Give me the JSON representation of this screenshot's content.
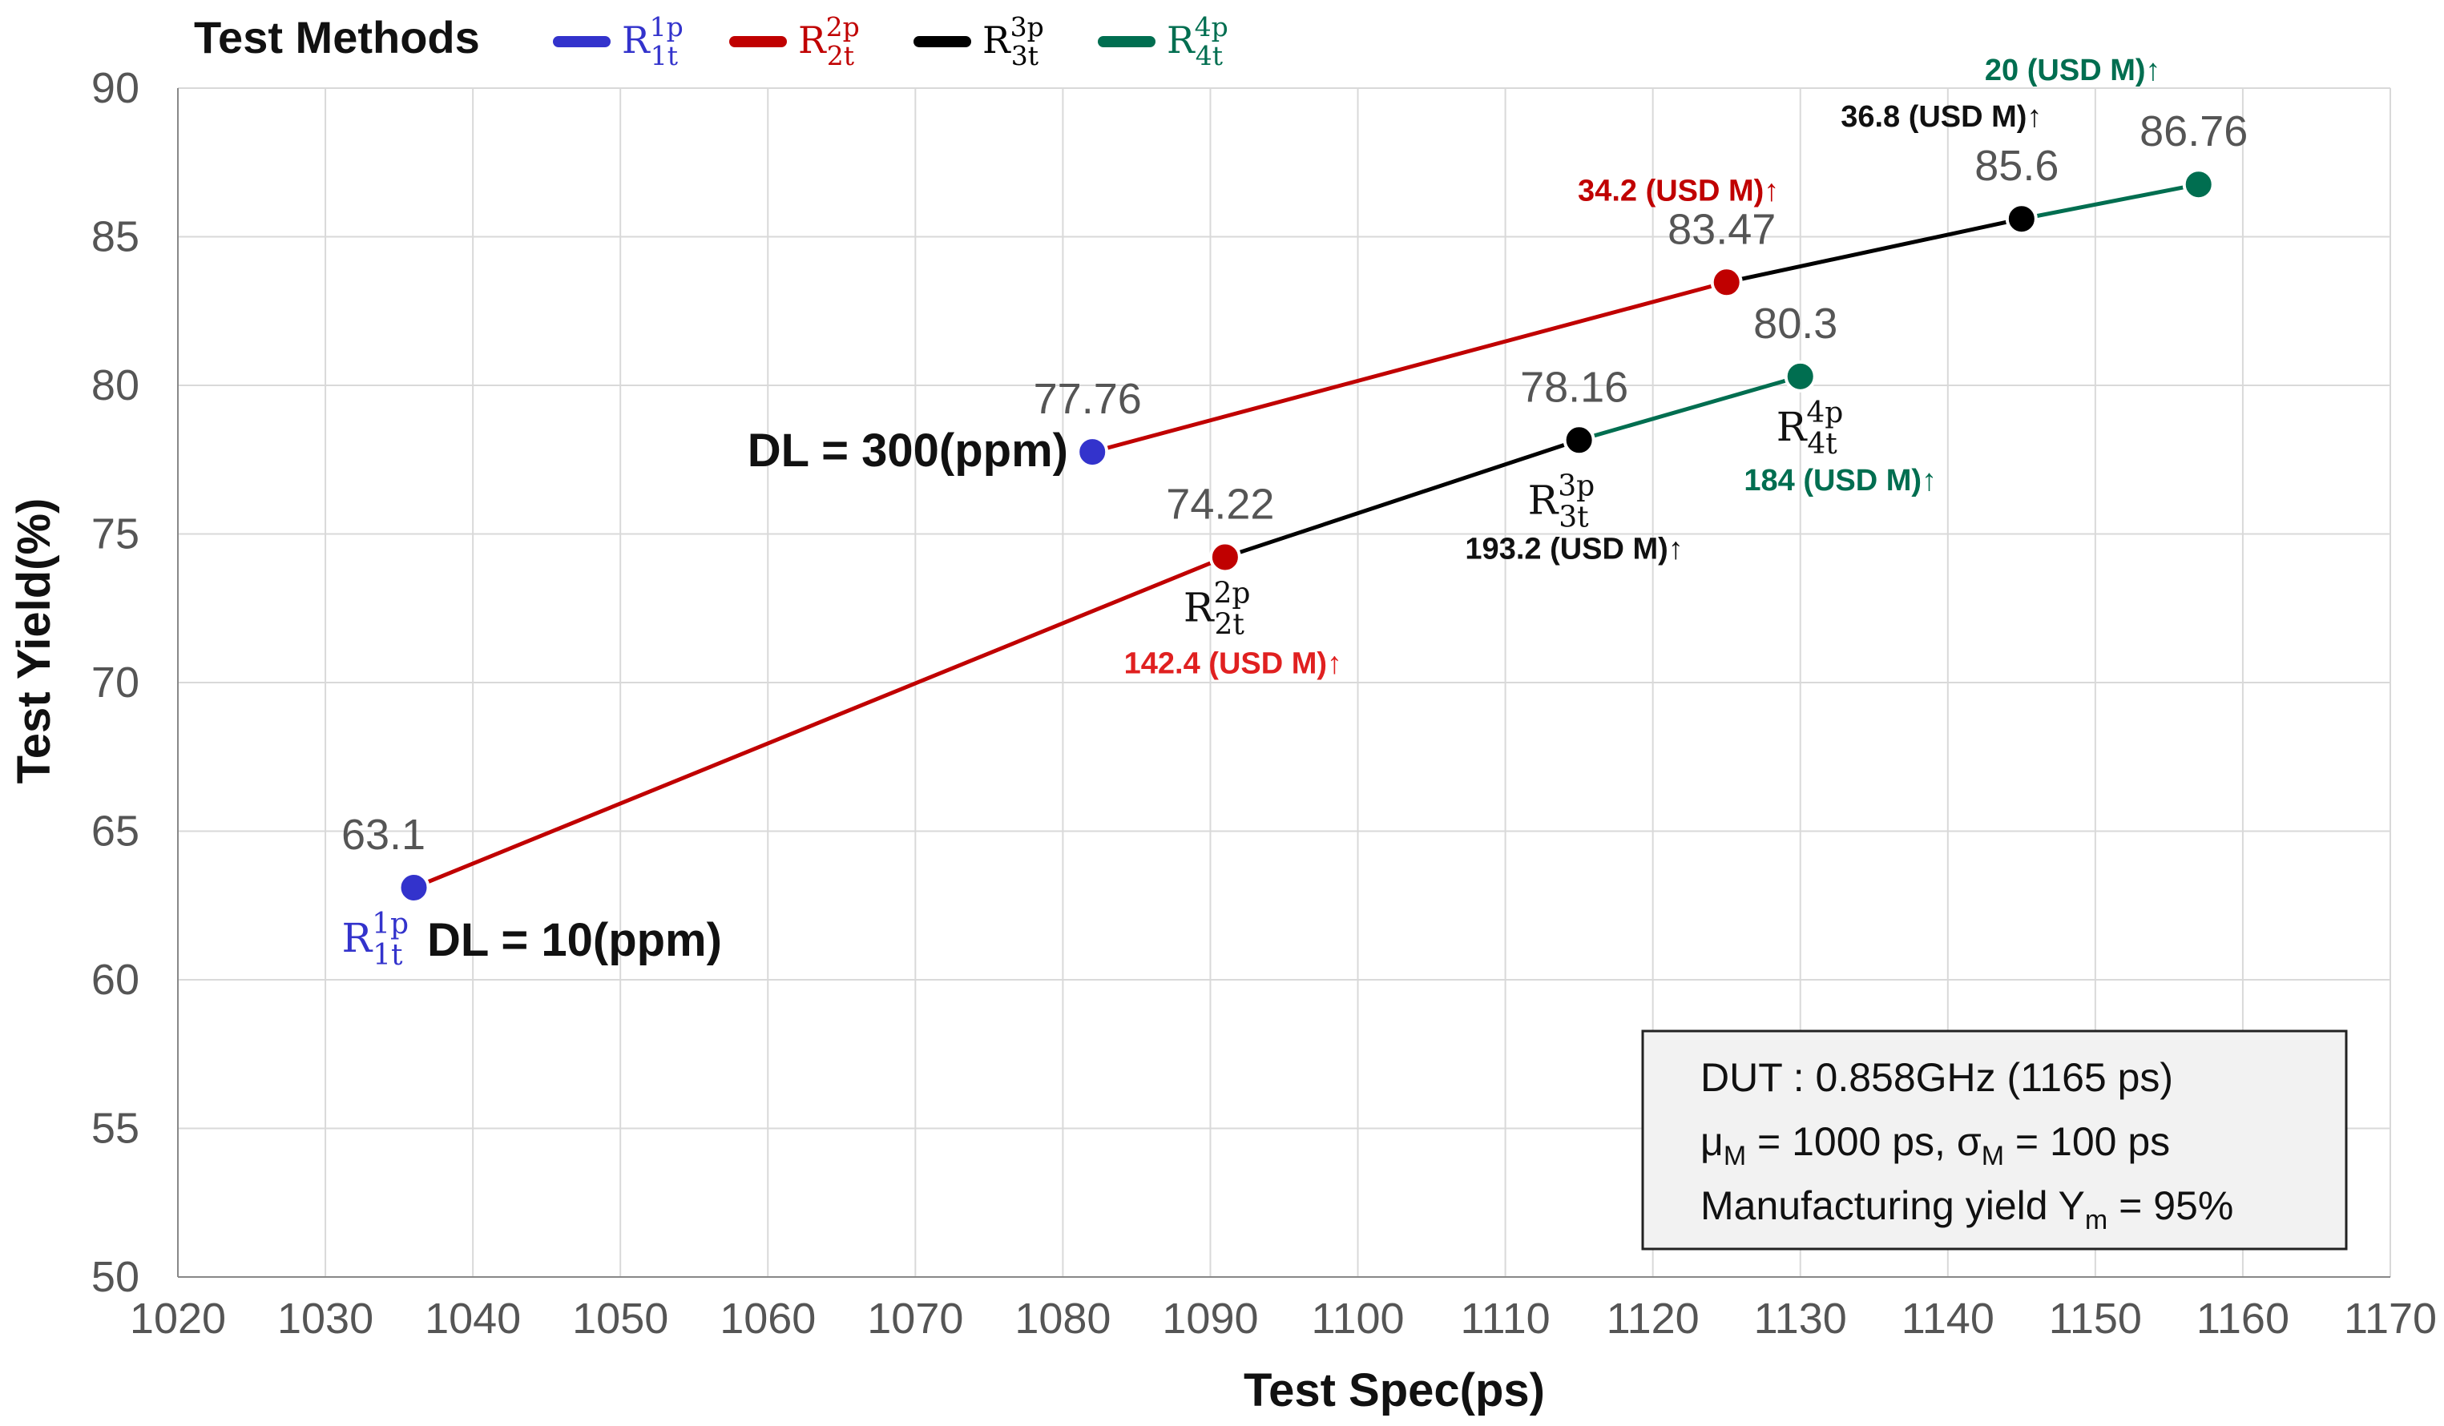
{
  "chart_data": {
    "type": "line",
    "xlabel": "Test Spec(ps)",
    "ylabel": "Test Yield(%)",
    "xlim": [
      1020,
      1170
    ],
    "ylim": [
      50,
      90
    ],
    "xticks": [
      "1020",
      "1030",
      "1040",
      "1050",
      "1060",
      "1070",
      "1080",
      "1090",
      "1100",
      "1110",
      "1120",
      "1130",
      "1140",
      "1150",
      "1160",
      "1170"
    ],
    "yticks": [
      "50",
      "55",
      "60",
      "65",
      "70",
      "75",
      "80",
      "85",
      "90"
    ],
    "grid": true,
    "legend": {
      "title": "Test Methods",
      "placement": "top-left",
      "items": [
        {
          "name": "R1p1t",
          "base": "R",
          "sup": "1p",
          "sub": "1t",
          "color": "#3333CC"
        },
        {
          "name": "R2p2t",
          "base": "R",
          "sup": "2p",
          "sub": "2t",
          "color": "#C00000"
        },
        {
          "name": "R3p3t",
          "base": "R",
          "sup": "3p",
          "sub": "3t",
          "color": "#000000"
        },
        {
          "name": "R4p4t",
          "base": "R",
          "sup": "4p",
          "sub": "4t",
          "color": "#006E50"
        }
      ]
    },
    "points": [
      {
        "id": "p1a",
        "x": 1036,
        "y": 63.1,
        "label": "63.1",
        "color": "#3333CC"
      },
      {
        "id": "p2a",
        "x": 1091,
        "y": 74.22,
        "label": "74.22",
        "color": "#C00000"
      },
      {
        "id": "p3a",
        "x": 1115,
        "y": 78.16,
        "label": "78.16",
        "color": "#000000"
      },
      {
        "id": "p4a",
        "x": 1130,
        "y": 80.3,
        "label": "80.3",
        "color": "#006E50"
      },
      {
        "id": "p1b",
        "x": 1082,
        "y": 77.76,
        "label": "77.76",
        "color": "#3333CC"
      },
      {
        "id": "p2b",
        "x": 1125,
        "y": 83.47,
        "label": "83.47",
        "color": "#C00000"
      },
      {
        "id": "p3b",
        "x": 1145,
        "y": 85.6,
        "label": "85.6",
        "color": "#000000"
      },
      {
        "id": "p4b",
        "x": 1157,
        "y": 86.76,
        "label": "86.76",
        "color": "#006E50"
      }
    ],
    "segments": [
      {
        "from": "p1a",
        "to": "p2a",
        "color": "#C00000"
      },
      {
        "from": "p2a",
        "to": "p3a",
        "color": "#000000"
      },
      {
        "from": "p3a",
        "to": "p4a",
        "color": "#006E50"
      },
      {
        "from": "p1b",
        "to": "p2b",
        "color": "#C00000"
      },
      {
        "from": "p2b",
        "to": "p3b",
        "color": "#000000"
      },
      {
        "from": "p3b",
        "to": "p4b",
        "color": "#006E50"
      }
    ],
    "series_labels": {
      "dl10": "DL = 10(ppm)",
      "dl300": "DL = 300(ppm)"
    },
    "method_annotations": [
      {
        "point": "p1a",
        "base": "R",
        "sup": "1p",
        "sub": "1t",
        "color": "#3333CC"
      },
      {
        "point": "p2a",
        "base": "R",
        "sup": "2p",
        "sub": "2t",
        "color": "#111111"
      },
      {
        "point": "p3a",
        "base": "R",
        "sup": "3p",
        "sub": "3t",
        "color": "#111111"
      },
      {
        "point": "p4a",
        "base": "R",
        "sup": "4p",
        "sub": "4t",
        "color": "#111111"
      }
    ],
    "cost_annotations": [
      {
        "point": "p2a",
        "text": "142.4 (USD M)↑",
        "color": "#E02020"
      },
      {
        "point": "p3a",
        "text": "193.2 (USD M)↑",
        "color": "#111111"
      },
      {
        "point": "p4a",
        "text": "184 (USD M)↑",
        "color": "#006E50"
      },
      {
        "point": "p2b",
        "text": "34.2 (USD M)↑",
        "color": "#C00000"
      },
      {
        "point": "p3b",
        "text": "36.8 (USD M)↑",
        "color": "#111111"
      },
      {
        "point": "p4b",
        "text": "20 (USD M)↑",
        "color": "#006E50"
      }
    ],
    "info_box": {
      "line1": "DUT : 0.858GHz (1165 ps)",
      "mu_label": "μ",
      "mu_sub": "M",
      "mu_value": " = 1000 ps, ",
      "sigma_label": "σ",
      "sigma_sub": "M",
      "sigma_value": " = 100 ps",
      "line3_prefix": "Manufacturing yield Y",
      "line3_sub": "m",
      "line3_value": " = 95%"
    }
  }
}
